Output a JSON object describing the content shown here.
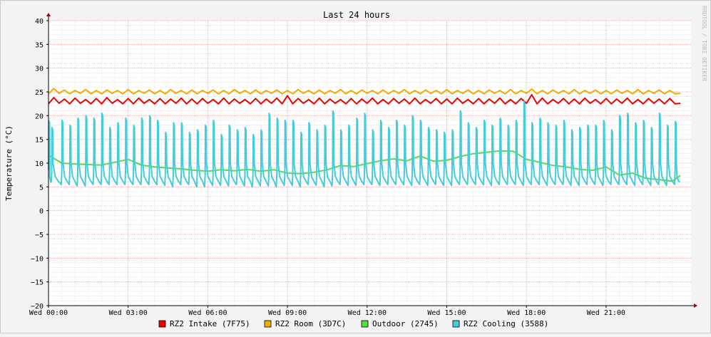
{
  "chart_data": {
    "type": "line",
    "title": "Last 24 hours",
    "ylabel": "Temperature (°C)",
    "xlabel": "",
    "watermark": "RRDTOOL / TOBI OETIKER",
    "ylim": [
      -20,
      40
    ],
    "yticks": [
      40,
      35,
      30,
      25,
      20,
      15,
      10,
      5,
      0,
      -5,
      -10,
      -15,
      -20
    ],
    "ytick_labels": [
      "40",
      "35",
      "30",
      "25",
      "20",
      "15",
      "10",
      "5",
      "0",
      "−5",
      "−10",
      "−15",
      "−20"
    ],
    "xlim_hours": [
      0,
      24.2
    ],
    "xticks_hours": [
      0,
      3,
      6,
      9,
      12,
      15,
      18,
      21
    ],
    "xtick_labels": [
      "Wed 00:00",
      "Wed 03:00",
      "Wed 06:00",
      "Wed 09:00",
      "Wed 12:00",
      "Wed 15:00",
      "Wed 18:00",
      "Wed 21:00"
    ],
    "grid": true,
    "legend_position": "bottom",
    "colors": {
      "background": "#f3f3f3",
      "canvas": "#ffffff",
      "major_grid": "#e8a0a0",
      "minor_grid": "#d8d8d8",
      "axis": "#000000",
      "arrow": "#a00000",
      "watermark": "#b8b8b8"
    },
    "series": [
      {
        "name": "RZ2 Intake (7F75)",
        "color": "#ee0000",
        "x": [
          0,
          0.2,
          0.4,
          0.6,
          0.8,
          1,
          1.2,
          1.4,
          1.6,
          1.8,
          2,
          2.2,
          2.4,
          2.6,
          2.8,
          3,
          3.2,
          3.4,
          3.6,
          3.8,
          4,
          4.2,
          4.4,
          4.6,
          4.8,
          5,
          5.2,
          5.4,
          5.6,
          5.8,
          6,
          6.2,
          6.4,
          6.6,
          6.8,
          7,
          7.2,
          7.4,
          7.6,
          7.8,
          8,
          8.2,
          8.4,
          8.6,
          8.8,
          9,
          9.2,
          9.4,
          9.6,
          9.8,
          10,
          10.2,
          10.4,
          10.6,
          10.8,
          11,
          11.2,
          11.4,
          11.6,
          11.8,
          12,
          12.2,
          12.4,
          12.6,
          12.8,
          13,
          13.2,
          13.4,
          13.6,
          13.8,
          14,
          14.2,
          14.4,
          14.6,
          14.8,
          15,
          15.2,
          15.4,
          15.6,
          15.8,
          16,
          16.2,
          16.4,
          16.6,
          16.8,
          17,
          17.2,
          17.4,
          17.6,
          17.8,
          18,
          18.2,
          18.4,
          18.6,
          18.8,
          19,
          19.2,
          19.4,
          19.6,
          19.8,
          20,
          20.2,
          20.4,
          20.6,
          20.8,
          21,
          21.2,
          21.4,
          21.6,
          21.8,
          22,
          22.2,
          22.4,
          22.6,
          22.8,
          23,
          23.2,
          23.4,
          23.6,
          23.8
        ],
        "values": [
          22.5,
          23.8,
          22.6,
          23.5,
          22.5,
          23.7,
          22.6,
          23.4,
          22.5,
          23.6,
          22.5,
          23.8,
          22.6,
          23.4,
          22.5,
          23.6,
          22.5,
          23.7,
          22.6,
          23.4,
          22.5,
          23.6,
          22.5,
          23.5,
          22.6,
          23.7,
          22.5,
          23.5,
          22.5,
          23.6,
          22.6,
          23.4,
          22.5,
          23.7,
          22.5,
          23.5,
          22.6,
          23.4,
          22.5,
          23.6,
          22.5,
          23.5,
          22.6,
          23.7,
          22.5,
          24.2,
          22.5,
          23.6,
          22.6,
          23.4,
          22.5,
          23.7,
          22.5,
          23.5,
          22.6,
          23.4,
          22.5,
          23.6,
          22.5,
          23.5,
          22.6,
          23.7,
          22.5,
          23.4,
          22.5,
          23.6,
          22.6,
          23.5,
          22.5,
          23.7,
          22.5,
          23.4,
          22.6,
          23.6,
          22.5,
          23.5,
          22.5,
          23.7,
          22.6,
          23.4,
          22.5,
          23.6,
          22.5,
          23.5,
          22.6,
          23.7,
          22.5,
          23.4,
          22.5,
          23.6,
          22.6,
          24.4,
          22.5,
          23.7,
          22.5,
          23.4,
          22.6,
          23.6,
          22.5,
          23.5,
          22.5,
          23.7,
          22.6,
          23.4,
          22.5,
          23.6,
          22.5,
          23.5,
          22.6,
          23.7,
          22.5,
          23.4,
          22.5,
          23.6,
          22.6,
          23.5,
          22.5,
          23.6,
          22.5,
          22.6
        ]
      },
      {
        "name": "RZ2 Room (3D7C)",
        "color": "#e8b000",
        "x": [
          0,
          0.2,
          0.4,
          0.6,
          0.8,
          1,
          1.2,
          1.4,
          1.6,
          1.8,
          2,
          2.2,
          2.4,
          2.6,
          2.8,
          3,
          3.2,
          3.4,
          3.6,
          3.8,
          4,
          4.2,
          4.4,
          4.6,
          4.8,
          5,
          5.2,
          5.4,
          5.6,
          5.8,
          6,
          6.2,
          6.4,
          6.6,
          6.8,
          7,
          7.2,
          7.4,
          7.6,
          7.8,
          8,
          8.2,
          8.4,
          8.6,
          8.8,
          9,
          9.2,
          9.4,
          9.6,
          9.8,
          10,
          10.2,
          10.4,
          10.6,
          10.8,
          11,
          11.2,
          11.4,
          11.6,
          11.8,
          12,
          12.2,
          12.4,
          12.6,
          12.8,
          13,
          13.2,
          13.4,
          13.6,
          13.8,
          14,
          14.2,
          14.4,
          14.6,
          14.8,
          15,
          15.2,
          15.4,
          15.6,
          15.8,
          16,
          16.2,
          16.4,
          16.6,
          16.8,
          17,
          17.2,
          17.4,
          17.6,
          17.8,
          18,
          18.2,
          18.4,
          18.6,
          18.8,
          19,
          19.2,
          19.4,
          19.6,
          19.8,
          20,
          20.2,
          20.4,
          20.6,
          20.8,
          21,
          21.2,
          21.4,
          21.6,
          21.8,
          22,
          22.2,
          22.4,
          22.6,
          22.8,
          23,
          23.2,
          23.4,
          23.6,
          23.8
        ],
        "values": [
          24.6,
          25.7,
          24.7,
          25.4,
          24.6,
          25.3,
          24.7,
          25.5,
          24.6,
          25.3,
          24.6,
          25.4,
          24.7,
          25.3,
          24.6,
          25.5,
          24.6,
          25.3,
          24.7,
          25.4,
          24.6,
          25.3,
          24.6,
          25.5,
          24.7,
          25.3,
          24.6,
          25.4,
          24.6,
          25.3,
          24.7,
          25.4,
          24.6,
          25.3,
          24.6,
          25.5,
          24.7,
          25.3,
          24.6,
          25.4,
          24.6,
          25.3,
          24.7,
          25.4,
          24.6,
          25.3,
          24.6,
          25.5,
          24.7,
          25.3,
          24.6,
          25.4,
          24.6,
          25.3,
          24.7,
          25.5,
          24.6,
          25.3,
          24.6,
          25.4,
          24.7,
          25.3,
          24.6,
          25.4,
          24.6,
          25.3,
          24.7,
          25.5,
          24.6,
          25.3,
          24.6,
          25.4,
          24.7,
          25.3,
          24.6,
          25.5,
          24.6,
          25.3,
          24.7,
          25.4,
          24.6,
          25.3,
          24.6,
          25.4,
          24.7,
          25.3,
          24.6,
          25.5,
          24.6,
          25.3,
          24.7,
          25.6,
          24.6,
          25.3,
          24.6,
          25.4,
          24.7,
          25.3,
          24.6,
          25.5,
          24.6,
          25.3,
          24.7,
          25.4,
          24.6,
          25.3,
          24.6,
          25.4,
          24.7,
          25.3,
          24.6,
          25.5,
          24.6,
          25.3,
          24.7,
          25.4,
          24.6,
          25.3,
          24.6,
          24.7
        ]
      },
      {
        "name": "Outdoor (2745)",
        "color": "#55dd44",
        "x": [
          0,
          0.5,
          1,
          1.5,
          2,
          2.5,
          3,
          3.5,
          4,
          4.5,
          5,
          5.5,
          6,
          6.5,
          7,
          7.5,
          8,
          8.5,
          9,
          9.5,
          10,
          10.5,
          11,
          11.5,
          12,
          12.5,
          13,
          13.5,
          14,
          14.5,
          15,
          15.5,
          16,
          16.5,
          17,
          17.5,
          18,
          18.5,
          19,
          19.5,
          20,
          20.5,
          21,
          21.5,
          22,
          22.5,
          23,
          23.5,
          23.8
        ],
        "values": [
          11.7,
          10,
          9.8,
          9.7,
          9.6,
          10.2,
          10.8,
          9.6,
          9.2,
          9.0,
          8.8,
          8.5,
          8.3,
          8.6,
          8.4,
          8.7,
          8.3,
          8.6,
          7.9,
          7.8,
          8.1,
          8.6,
          9.5,
          9.3,
          9.9,
          10.5,
          10.9,
          10.5,
          11.5,
          10.4,
          10.6,
          11.4,
          12.0,
          12.3,
          12.6,
          12.5,
          10.8,
          10.2,
          9.5,
          9.2,
          8.7,
          8.5,
          9.2,
          7.5,
          7.9,
          6.8,
          6.5,
          6.2,
          7.4
        ]
      },
      {
        "name": "RZ2 Cooling (3588)",
        "color": "#44ccdd",
        "x": [
          0,
          0.12,
          0.5,
          0.8,
          1.1,
          1.4,
          1.7,
          2,
          2.3,
          2.6,
          2.9,
          3.2,
          3.5,
          3.8,
          4.1,
          4.4,
          4.7,
          5,
          5.3,
          5.6,
          5.9,
          6.2,
          6.5,
          6.8,
          7.1,
          7.4,
          7.7,
          8,
          8.3,
          8.6,
          8.9,
          9.2,
          9.5,
          9.8,
          10.1,
          10.4,
          10.7,
          11,
          11.3,
          11.6,
          11.9,
          12.2,
          12.5,
          12.8,
          13.1,
          13.4,
          13.7,
          14,
          14.3,
          14.6,
          14.9,
          15.2,
          15.5,
          15.8,
          16.1,
          16.4,
          16.7,
          17,
          17.3,
          17.6,
          17.9,
          18.2,
          18.5,
          18.8,
          19.1,
          19.4,
          19.7,
          20,
          20.3,
          20.6,
          20.9,
          21.2,
          21.5,
          21.8,
          22.1,
          22.4,
          22.7,
          23,
          23.3,
          23.6,
          23.8
        ],
        "peaks": [
          19,
          17.5,
          19,
          18,
          19.5,
          20,
          19.5,
          20.5,
          17.5,
          18.5,
          19.5,
          18,
          19.5,
          20,
          19,
          16.5,
          18.5,
          18.5,
          16.5,
          17,
          18,
          19,
          16,
          18,
          17,
          17.5,
          16,
          17,
          20.5,
          19.5,
          19,
          19,
          16.5,
          18.5,
          17,
          18,
          21,
          17,
          18,
          19.5,
          20.5,
          17,
          19,
          17.5,
          19,
          18,
          20,
          19,
          17.5,
          17,
          16.5,
          17,
          21,
          18.5,
          17.5,
          19,
          18,
          19.5,
          18,
          19,
          23,
          18.5,
          19.5,
          18.5,
          18,
          19,
          17,
          17.5,
          18,
          18,
          19,
          17,
          20,
          20.5,
          18.5,
          19,
          17.5,
          20.5,
          18,
          18.8
        ],
        "troughs": [
          6,
          5.5,
          5.5,
          5.2,
          5.2,
          5.5,
          5.5,
          5.5,
          5.5,
          5.5,
          5.5,
          5.5,
          5.5,
          5.5,
          5.3,
          5,
          5.5,
          5.5,
          5,
          5,
          5.3,
          5.3,
          5.2,
          5.5,
          5.2,
          5,
          5.2,
          5.2,
          5,
          5.3,
          5.3,
          5,
          5.5,
          5.3,
          5,
          5.2,
          5.5,
          5.3,
          5.3,
          5.5,
          5.5,
          5.3,
          5.5,
          5.5,
          5.5,
          5.3,
          5.5,
          5.3,
          5.5,
          5.3,
          5.3,
          5.5,
          5.5,
          5.5,
          5.5,
          5.3,
          5.5,
          5.5,
          5.5,
          5.3,
          5.5,
          5.5,
          5.3,
          5.5,
          5.5,
          5.3,
          5.3,
          5.5,
          5.5,
          5.3,
          5.5,
          5.5,
          5.5,
          5.3,
          5.5,
          5.3,
          5.5,
          5.3,
          5.5,
          6
        ]
      }
    ]
  }
}
